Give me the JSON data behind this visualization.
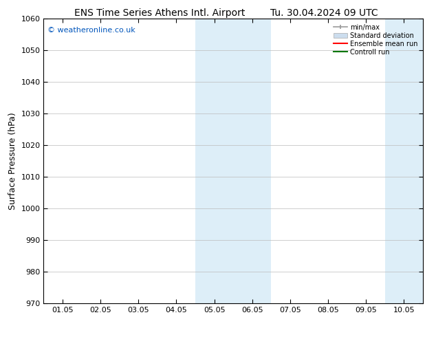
{
  "title_left": "ENS Time Series Athens Intl. Airport",
  "title_right": "Tu. 30.04.2024 09 UTC",
  "ylabel": "Surface Pressure (hPa)",
  "ylim": [
    970,
    1060
  ],
  "yticks": [
    970,
    980,
    990,
    1000,
    1010,
    1020,
    1030,
    1040,
    1050,
    1060
  ],
  "xtick_labels": [
    "01.05",
    "02.05",
    "03.05",
    "04.05",
    "05.05",
    "06.05",
    "07.05",
    "08.05",
    "09.05",
    "10.05"
  ],
  "shaded_regions": [
    {
      "xstart": 3.5,
      "xend": 4.5
    },
    {
      "xstart": 4.5,
      "xend": 5.5
    },
    {
      "xstart": 8.5,
      "xend": 9.5
    },
    {
      "xstart": 9.5,
      "xend": 10.5
    }
  ],
  "shaded_color": "#ddeef8",
  "watermark": "© weatheronline.co.uk",
  "watermark_color": "#0055bb",
  "legend_items": [
    {
      "label": "min/max",
      "color": "#999999",
      "lw": 1.2,
      "style": "solid"
    },
    {
      "label": "Standard deviation",
      "color": "#ccddee",
      "lw": 8,
      "style": "solid"
    },
    {
      "label": "Ensemble mean run",
      "color": "#ff0000",
      "lw": 1.5,
      "style": "solid"
    },
    {
      "label": "Controll run",
      "color": "#007700",
      "lw": 1.5,
      "style": "solid"
    }
  ],
  "bg_color": "#ffffff",
  "spine_color": "#000000",
  "grid_color": "#bbbbbb",
  "title_fontsize": 10,
  "label_fontsize": 9,
  "tick_fontsize": 8,
  "watermark_fontsize": 8
}
